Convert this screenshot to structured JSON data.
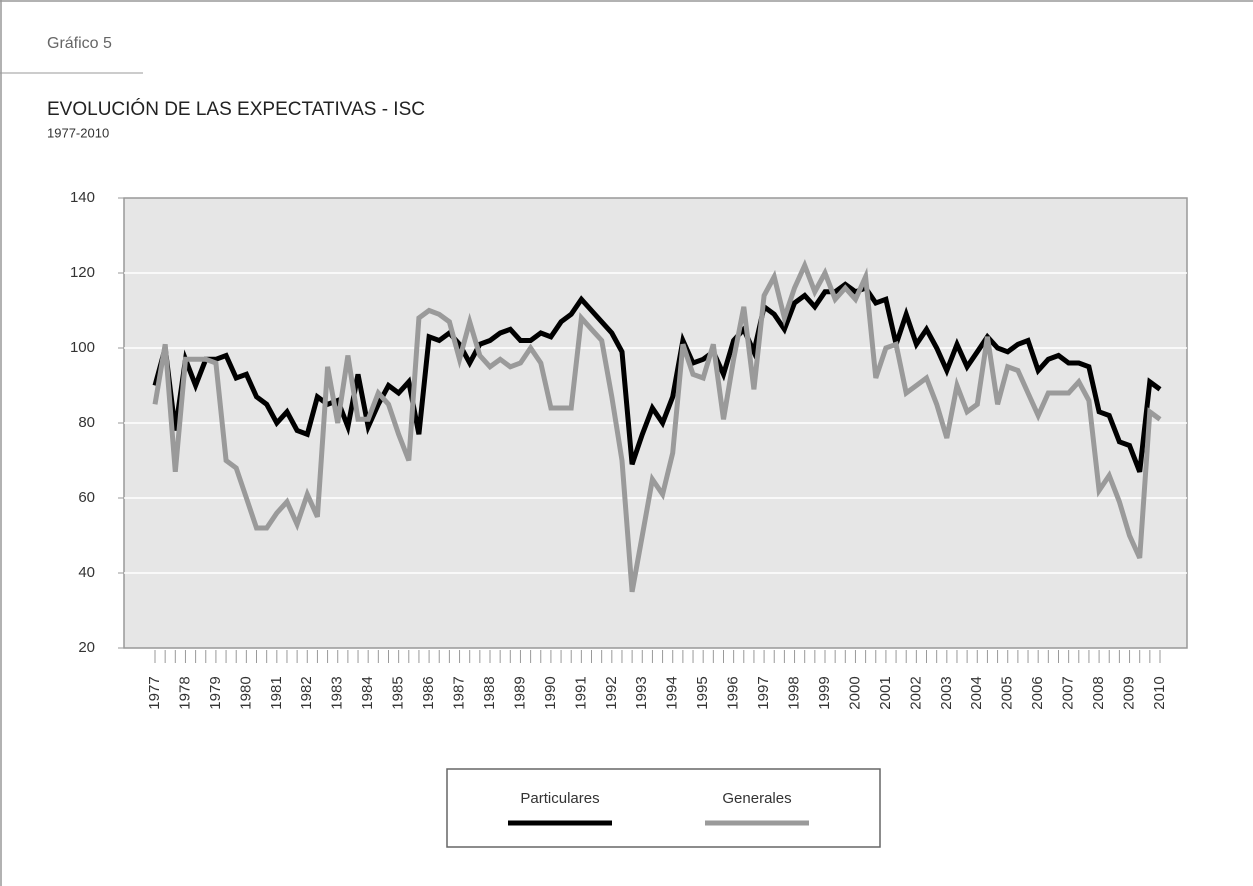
{
  "chart_data": {
    "type": "line",
    "figure_label": "Gráfico 5",
    "title": "EVOLUCIÓN DE LAS EXPECTATIVAS - ISC",
    "subtitle": "1977-2010",
    "categories": [
      "1977",
      null,
      null,
      "1978",
      null,
      null,
      "1979",
      null,
      null,
      "1980",
      null,
      null,
      "1981",
      null,
      null,
      "1982",
      null,
      null,
      "1983",
      null,
      null,
      "1984",
      null,
      null,
      "1985",
      null,
      null,
      "1986",
      null,
      null,
      "1987",
      null,
      null,
      "1988",
      null,
      null,
      "1989",
      null,
      null,
      "1990",
      null,
      null,
      "1991",
      null,
      null,
      "1992",
      null,
      null,
      "1993",
      null,
      null,
      "1994",
      null,
      null,
      "1995",
      null,
      null,
      "1996",
      null,
      null,
      "1997",
      null,
      null,
      "1998",
      null,
      null,
      "1999",
      null,
      null,
      "2000",
      null,
      null,
      "2001",
      null,
      null,
      "2002",
      null,
      null,
      "2003",
      null,
      null,
      "2004",
      null,
      null,
      "2005",
      null,
      null,
      "2006",
      null,
      null,
      "2007",
      null,
      null,
      "2008",
      null,
      null,
      "2009",
      null,
      null,
      "2010"
    ],
    "series": [
      {
        "name": "Particulares",
        "color": "#000000",
        "values": [
          90,
          100,
          78,
          97,
          90,
          97,
          97,
          98,
          92,
          93,
          87,
          85,
          80,
          83,
          78,
          77,
          87,
          85,
          86,
          79,
          93,
          79,
          85,
          90,
          88,
          91,
          77,
          103,
          102,
          104,
          101,
          96,
          101,
          102,
          104,
          105,
          102,
          102,
          104,
          103,
          107,
          109,
          113,
          110,
          107,
          104,
          99,
          69,
          77,
          84,
          80,
          87,
          102,
          96,
          97,
          99,
          93,
          102,
          105,
          99,
          111,
          109,
          105,
          112,
          114,
          111,
          115,
          115,
          117,
          115,
          116,
          112,
          113,
          101,
          109,
          101,
          105,
          100,
          94,
          101,
          95,
          99,
          103,
          100,
          99,
          101,
          102,
          94,
          97,
          98,
          96,
          96,
          95,
          83,
          82,
          75,
          74,
          67,
          91,
          89
        ]
      },
      {
        "name": "Generales",
        "color": "#9a9a9a",
        "values": [
          85,
          101,
          67,
          97,
          97,
          97,
          96,
          70,
          68,
          60,
          52,
          52,
          56,
          59,
          53,
          61,
          55,
          95,
          80,
          98,
          81,
          81,
          88,
          85,
          77,
          70,
          108,
          110,
          109,
          107,
          97,
          107,
          98,
          95,
          97,
          95,
          96,
          100,
          96,
          84,
          84,
          84,
          108,
          105,
          102,
          87,
          70,
          35,
          50,
          65,
          61,
          72,
          101,
          93,
          92,
          101,
          81,
          97,
          111,
          89,
          114,
          119,
          108,
          116,
          122,
          115,
          120,
          113,
          116,
          113,
          119,
          92,
          100,
          101,
          88,
          90,
          92,
          85,
          76,
          90,
          83,
          85,
          103,
          85,
          95,
          94,
          88,
          82,
          88,
          88,
          88,
          91,
          86,
          62,
          66,
          59,
          50,
          44,
          83,
          81
        ]
      }
    ],
    "ylim": [
      20,
      140
    ],
    "yticks": [
      20,
      40,
      60,
      80,
      100,
      120,
      140
    ],
    "grid": true,
    "legend": "bottom"
  }
}
